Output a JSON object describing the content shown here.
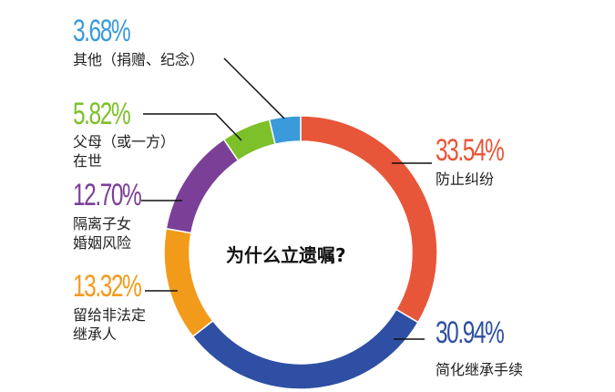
{
  "chart_data": {
    "type": "pie",
    "subtype": "donut",
    "title": "为什么立遗嘱?",
    "categories": [
      "防止纠纷",
      "简化继承手续",
      "留给非法定继承人",
      "隔离子女婚姻风险",
      "父母（或一方）在世",
      "其他（捐赠、纪念）"
    ],
    "values": [
      33.54,
      30.94,
      13.32,
      12.7,
      5.82,
      3.68
    ],
    "unit": "%",
    "colors": [
      "#E8563A",
      "#2E4FA3",
      "#F29A1A",
      "#7B3F98",
      "#7DC02A",
      "#3A9ADA"
    ],
    "start_angle": "12 o'clock",
    "direction": "clockwise",
    "legend": "none (inline labels with leader lines)"
  },
  "center": {
    "title": "为什么立遗嘱?"
  },
  "labels": [
    {
      "pct": "33.54%",
      "line1": "防止纠纷",
      "line2": "",
      "color": "#E8563A"
    },
    {
      "pct": "30.94%",
      "line1": "简化继承手续",
      "line2": "",
      "color": "#2E4FA3"
    },
    {
      "pct": "13.32%",
      "line1": "留给非法定",
      "line2": "继承人",
      "color": "#F29A1A"
    },
    {
      "pct": "12.70%",
      "line1": "隔离子女",
      "line2": "婚姻风险",
      "color": "#7B3F98"
    },
    {
      "pct": "5.82%",
      "line1": "父母（或一方）",
      "line2": "在世",
      "color": "#7DC02A"
    },
    {
      "pct": "3.68%",
      "line1": "其他（捐赠、纪念）",
      "line2": "",
      "color": "#3A9ADA"
    }
  ]
}
